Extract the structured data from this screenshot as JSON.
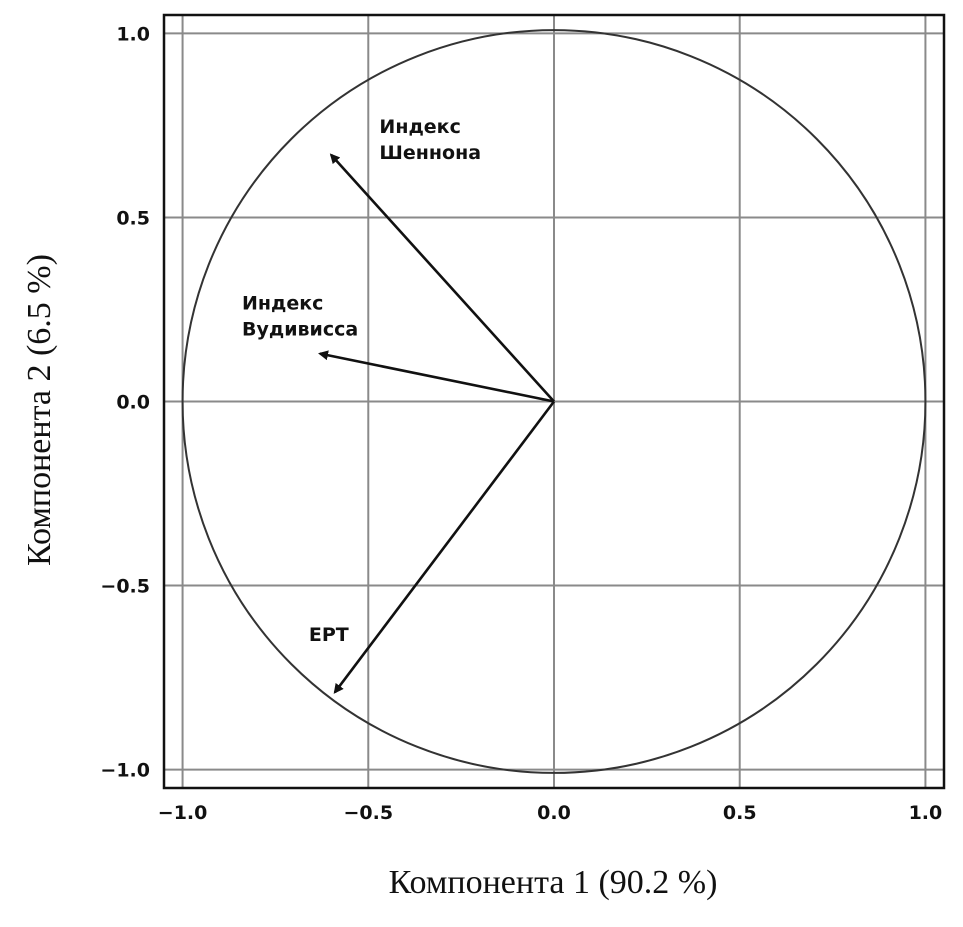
{
  "chart_data": {
    "type": "scatter",
    "subtype": "pca-correlation-circle",
    "xlabel": "Компонента 1 (90.2 %)",
    "ylabel": "Компонента 2 (6.5 %)",
    "xlim": [
      -1.05,
      1.05
    ],
    "ylim": [
      -1.05,
      1.05
    ],
    "xticks": [
      -1.0,
      -0.5,
      0.0,
      0.5,
      1.0
    ],
    "yticks": [
      -1.0,
      -0.5,
      0.0,
      0.5,
      1.0
    ],
    "xtick_labels": [
      "−1.0",
      "−0.5",
      "0.0",
      "0.5",
      "1.0"
    ],
    "ytick_labels": [
      "−1.0",
      "−0.5",
      "0.0",
      "0.5",
      "1.0"
    ],
    "grid": true,
    "unit_circle": true,
    "vectors": [
      {
        "label_lines": [
          "Индекс",
          "Шеннона"
        ],
        "x": -0.6,
        "y": 0.67,
        "label_x": -0.47,
        "label_y": 0.73
      },
      {
        "label_lines": [
          "Индекс",
          "Вудивисса"
        ],
        "x": -0.63,
        "y": 0.13,
        "label_x": -0.84,
        "label_y": 0.25
      },
      {
        "label_lines": [
          "EPT"
        ],
        "x": -0.59,
        "y": -0.79,
        "label_x": -0.66,
        "label_y": -0.65
      }
    ]
  }
}
